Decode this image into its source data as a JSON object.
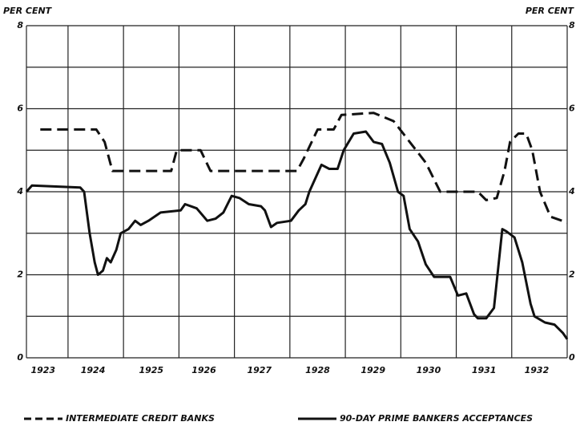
{
  "chart_data": {
    "type": "line",
    "y_label": "PER CENT",
    "y2_label": "PER CENT",
    "xlim": [
      1923.25,
      1933.0
    ],
    "ylim": [
      0,
      8
    ],
    "y2lim": [
      0,
      8
    ],
    "yticks": [
      0,
      2,
      4,
      6,
      8
    ],
    "y2ticks": [
      0,
      2,
      4,
      6,
      8
    ],
    "ygrid": [
      0,
      1,
      2,
      3,
      4,
      5,
      6,
      7,
      8
    ],
    "xgrid": [
      1924,
      1925,
      1926,
      1927,
      1928,
      1929,
      1930,
      1931,
      1932,
      1933
    ],
    "xticks": [
      {
        "value": 1923.55,
        "label": "1923"
      },
      {
        "value": 1924.45,
        "label": "1924"
      },
      {
        "value": 1925.5,
        "label": "1925"
      },
      {
        "value": 1926.45,
        "label": "1926"
      },
      {
        "value": 1927.45,
        "label": "1927"
      },
      {
        "value": 1928.5,
        "label": "1928"
      },
      {
        "value": 1929.5,
        "label": "1929"
      },
      {
        "value": 1930.5,
        "label": "1930"
      },
      {
        "value": 1931.5,
        "label": "1931"
      },
      {
        "value": 1932.45,
        "label": "1932"
      }
    ],
    "legend": "bottom",
    "series": [
      {
        "name": "INTERMEDIATE CREDIT BANKS",
        "color": "#111",
        "dash": true,
        "x": [
          1923.5,
          1924.51,
          1924.66,
          1924.8,
          1925.86,
          1925.96,
          1926.39,
          1926.57,
          1928.13,
          1928.25,
          1928.5,
          1928.79,
          1928.93,
          1929.51,
          1929.87,
          1930.16,
          1930.45,
          1930.6,
          1930.71,
          1931.39,
          1931.54,
          1931.73,
          1931.87,
          1931.97,
          1932.12,
          1932.26,
          1932.37,
          1932.51,
          1932.7,
          1932.91,
          1933.0
        ],
        "values": [
          5.5,
          5.5,
          5.2,
          4.5,
          4.5,
          5.0,
          5.0,
          4.5,
          4.5,
          4.8,
          5.5,
          5.5,
          5.85,
          5.9,
          5.7,
          5.2,
          4.7,
          4.3,
          4.0,
          4.0,
          3.8,
          3.85,
          4.5,
          5.2,
          5.4,
          5.4,
          5.0,
          4.0,
          3.4,
          3.3,
          3.25
        ]
      },
      {
        "name": "90-DAY PRIME BANKERS ACCEPTANCES",
        "color": "#111",
        "dash": false,
        "x": [
          1923.25,
          1923.35,
          1924.22,
          1924.29,
          1924.39,
          1924.48,
          1924.54,
          1924.63,
          1924.7,
          1924.77,
          1924.87,
          1924.95,
          1925.09,
          1925.21,
          1925.31,
          1925.45,
          1925.67,
          1926.03,
          1926.11,
          1926.32,
          1926.51,
          1926.66,
          1926.8,
          1926.95,
          1927.09,
          1927.26,
          1927.48,
          1927.55,
          1927.66,
          1927.77,
          1928.02,
          1928.16,
          1928.28,
          1928.35,
          1928.57,
          1928.71,
          1928.86,
          1928.97,
          1929.15,
          1929.37,
          1929.51,
          1929.66,
          1929.8,
          1929.95,
          1930.05,
          1930.16,
          1930.31,
          1930.45,
          1930.6,
          1930.89,
          1931.03,
          1931.18,
          1931.32,
          1931.39,
          1931.54,
          1931.68,
          1931.83,
          1931.9,
          1932.05,
          1932.19,
          1932.34,
          1932.41,
          1932.6,
          1932.77,
          1932.92,
          1933.0
        ],
        "values": [
          4.0,
          4.15,
          4.1,
          4.0,
          3.0,
          2.3,
          2.0,
          2.1,
          2.4,
          2.3,
          2.6,
          3.0,
          3.1,
          3.3,
          3.2,
          3.3,
          3.5,
          3.55,
          3.7,
          3.6,
          3.3,
          3.35,
          3.5,
          3.9,
          3.85,
          3.7,
          3.65,
          3.55,
          3.15,
          3.25,
          3.3,
          3.55,
          3.7,
          4.0,
          4.65,
          4.55,
          4.55,
          5.0,
          5.4,
          5.45,
          5.2,
          5.15,
          4.7,
          4.0,
          3.9,
          3.1,
          2.8,
          2.25,
          1.95,
          1.95,
          1.5,
          1.55,
          1.05,
          0.95,
          0.95,
          1.2,
          3.1,
          3.05,
          2.9,
          2.3,
          1.3,
          1.0,
          0.85,
          0.8,
          0.6,
          0.45
        ]
      }
    ]
  }
}
